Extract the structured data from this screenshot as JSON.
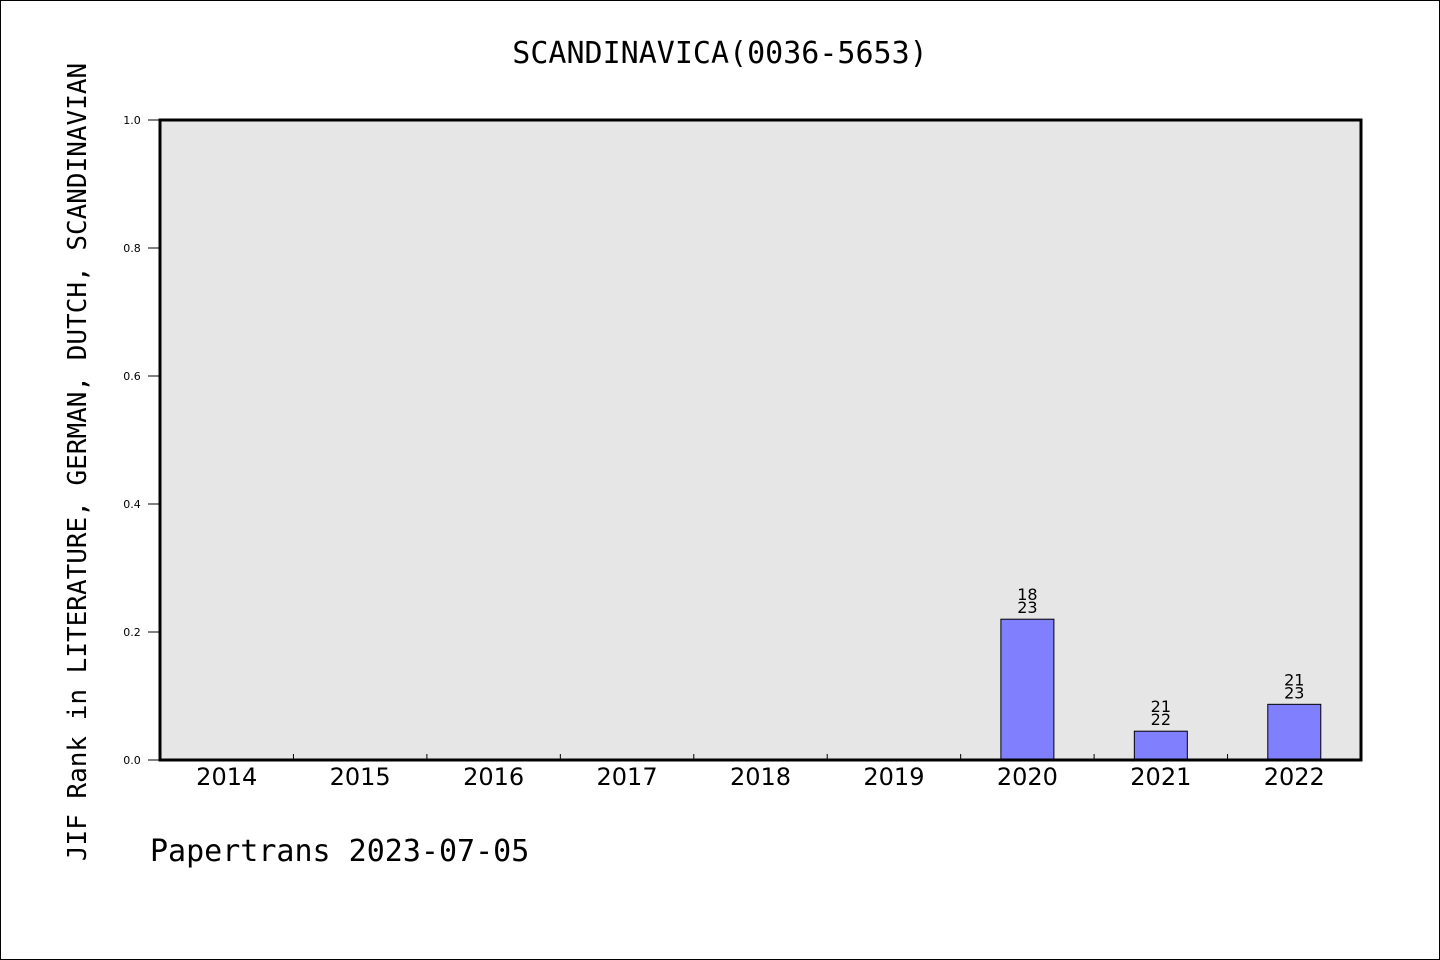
{
  "chart_data": {
    "type": "bar",
    "title": "SCANDINAVICA(0036-5653)",
    "ylabel": "JIF Rank in LITERATURE, GERMAN, DUTCH, SCANDINAVIAN",
    "xlabel": "",
    "categories": [
      "2014",
      "2015",
      "2016",
      "2017",
      "2018",
      "2019",
      "2020",
      "2021",
      "2022"
    ],
    "values": [
      null,
      null,
      null,
      null,
      null,
      null,
      0.22,
      0.045,
      0.087
    ],
    "bar_labels": [
      null,
      null,
      null,
      null,
      null,
      null,
      [
        "18",
        "23"
      ],
      [
        "21",
        "22"
      ],
      [
        "21",
        "23"
      ]
    ],
    "ylim": [
      0,
      1.0
    ],
    "yticks": [
      "0.0",
      "0.2",
      "0.4",
      "0.6",
      "0.8",
      "1.0"
    ],
    "grid": false,
    "bar_color": "#8080ff",
    "plot_background": "#e6e6e6"
  },
  "footer": "Papertrans 2023-07-05"
}
